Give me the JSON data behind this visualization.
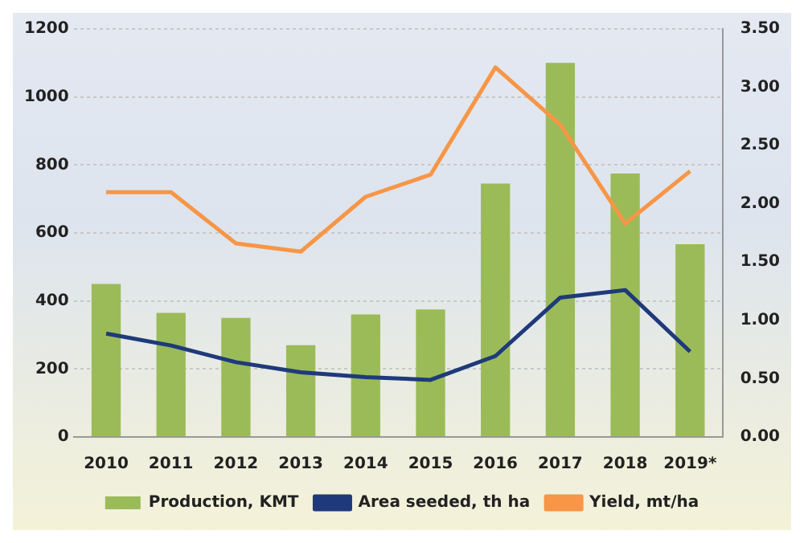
{
  "chart_data": {
    "type": "bar",
    "categories": [
      "2010",
      "2011",
      "2012",
      "2013",
      "2014",
      "2015",
      "2016",
      "2017",
      "2018",
      "2019*"
    ],
    "series": [
      {
        "name": "Production, KMT",
        "color": "#9bbb59",
        "values": [
          450,
          365,
          350,
          270,
          360,
          375,
          745,
          1100,
          775,
          567
        ]
      },
      {
        "name": "Area seeded, th ha",
        "type": "line",
        "color": "#1f3a7a",
        "values": [
          304,
          269,
          220,
          190,
          176,
          168,
          238,
          410,
          432,
          251
        ]
      },
      {
        "name": "Yield, mt/ha",
        "type": "line",
        "axis": "y2",
        "color": "#f79646",
        "values": [
          2.1,
          2.1,
          1.66,
          1.59,
          2.06,
          2.25,
          3.17,
          2.68,
          1.83,
          2.28
        ]
      }
    ],
    "ylim": [
      0,
      1200
    ],
    "yticks": [
      0,
      200,
      400,
      600,
      800,
      1000,
      1200
    ],
    "y2lim": [
      0,
      3.5
    ],
    "y2ticks": [
      {
        "value": 0,
        "label": "0.00"
      },
      {
        "value": 0.5,
        "label": "0.50"
      },
      {
        "value": 1,
        "label": "1.00"
      },
      {
        "value": 1.5,
        "label": "1.50"
      },
      {
        "value": 2,
        "label": "2.00"
      },
      {
        "value": 2.5,
        "label": "2.50"
      },
      {
        "value": 3,
        "label": "3.00"
      },
      {
        "value": 3.5,
        "label": "3.50"
      }
    ],
    "grid": "y",
    "legend": "bottom",
    "marker": "none",
    "line_style": "solid"
  }
}
